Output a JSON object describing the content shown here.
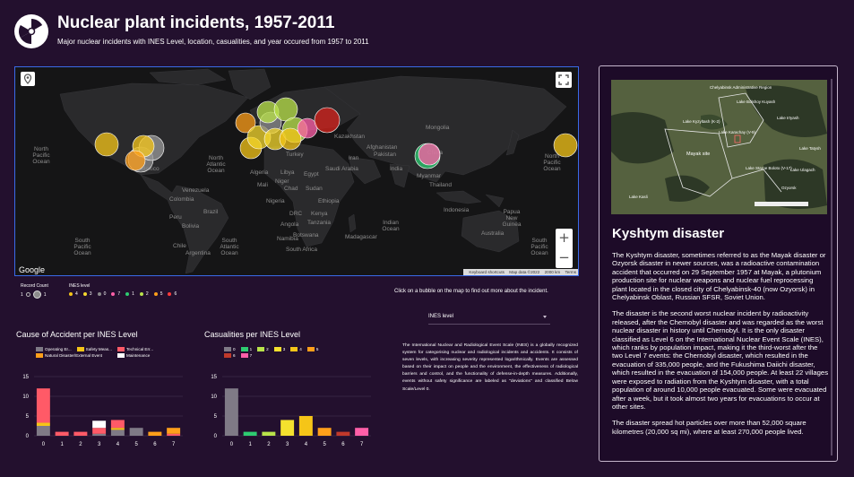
{
  "header": {
    "title": "Nuclear plant incidents, 1957-2011",
    "subtitle": "Major nuclear incidents with INES Level, location, casualities, and year occured from 1957 to 2011"
  },
  "map": {
    "ocean_labels": [
      "North Pacific Ocean",
      "North Atlantic Ocean",
      "South Pacific Ocean",
      "South Atlantic Ocean",
      "Indian Ocean",
      "South Pacific Ocean",
      "North Pacific Ocean",
      "Kazakhstan",
      "Iran",
      "Turkey",
      "Algeria",
      "Libya",
      "Egypt",
      "Chad",
      "Sudan",
      "Nigeria",
      "Ethiopia",
      "Kenya",
      "DRC",
      "Angola",
      "Tanzania",
      "Namibia",
      "Botswana",
      "Madagascar",
      "South Africa",
      "Saudi Arabia",
      "Mongolia",
      "China",
      "India",
      "Myanmar",
      "Thailand",
      "Indonesia",
      "Australia",
      "Mexico",
      "Venezuela",
      "Colombia",
      "Peru",
      "Brazil",
      "Bolivia",
      "Chile",
      "Argentina",
      "Papua New Guinea",
      "Mali",
      "Niger",
      "Pakistan",
      "Afghanistan"
    ],
    "attribution": [
      "Keyboard shortcuts",
      "Map data ©2022",
      "2000 km",
      "Terms"
    ],
    "google": "Google",
    "bubbles": [
      {
        "name": "USA Idaho",
        "level": 4,
        "color": "#f5c518"
      },
      {
        "name": "USA Three Mile Island",
        "level": 5,
        "color": "#ff9f1a"
      },
      {
        "name": "USA West",
        "level": 0,
        "color": "#8c8c8c"
      },
      {
        "name": "UK Windscale",
        "level": 5,
        "color": "#ff9f1a"
      },
      {
        "name": "France",
        "level": 4,
        "color": "#f5c518"
      },
      {
        "name": "Chernobyl",
        "level": 7,
        "color": "#ff4f5a"
      },
      {
        "name": "Kyshtym",
        "level": 6,
        "color": "#c0392b"
      },
      {
        "name": "Japan Fukushima",
        "level": 7,
        "color": "#ff4f5a"
      },
      {
        "name": "Japan Tokaimura",
        "level": 1,
        "color": "#2ecc71"
      }
    ]
  },
  "legend": {
    "size_title": "Record Count",
    "size_values": [
      "1",
      "1"
    ],
    "color_title": "INES level",
    "levels": [
      {
        "label": "4",
        "color": "#f5c518"
      },
      {
        "label": "3",
        "color": "#f5d82e"
      },
      {
        "label": "0",
        "color": "#8c8c8c"
      },
      {
        "label": "7",
        "color": "#ff5fa8"
      },
      {
        "label": "1",
        "color": "#2ecc71"
      },
      {
        "label": "2",
        "color": "#b9e34a"
      },
      {
        "label": "5",
        "color": "#ff9f1a"
      },
      {
        "label": "6",
        "color": "#ff3b3b"
      }
    ]
  },
  "hint": "Click on a bubble on the map to find out more about the incident.",
  "select": {
    "value": "INES level"
  },
  "cause_chart": {
    "title": "Cause of Accident per INES Level",
    "legend": [
      {
        "label": "Operating Er...",
        "color": "#7f7a86"
      },
      {
        "label": "Safety Meas...",
        "color": "#f5c518"
      },
      {
        "label": "Technical Err...",
        "color": "#ff5a67"
      },
      {
        "label": "Natural Disaster/External Event",
        "color": "#ff9f1a"
      },
      {
        "label": "Maintenance",
        "color": "#ffffff"
      }
    ]
  },
  "cas_chart": {
    "title": "Casualities per INES Level",
    "legend": [
      {
        "label": "0",
        "color": "#7f7a86"
      },
      {
        "label": "1",
        "color": "#2ecc71"
      },
      {
        "label": "2",
        "color": "#b9e34a"
      },
      {
        "label": "3",
        "color": "#f5e12e"
      },
      {
        "label": "4",
        "color": "#f5c518"
      },
      {
        "label": "5",
        "color": "#ff9f1a"
      },
      {
        "label": "6",
        "color": "#c0392b"
      },
      {
        "label": "7",
        "color": "#ff5fa8"
      }
    ]
  },
  "chart_data": [
    {
      "type": "bar",
      "title": "Cause of Accident per INES Level",
      "categories": [
        "0",
        "1",
        "2",
        "3",
        "4",
        "5",
        "6",
        "7"
      ],
      "ylim": [
        0,
        15
      ],
      "yticks": [
        "0",
        "5",
        "10",
        "15"
      ],
      "series": [
        {
          "name": "Operating Er...",
          "values": [
            2.5,
            0,
            0,
            0.5,
            1.5,
            2,
            0,
            0
          ]
        },
        {
          "name": "Safety Meas...",
          "values": [
            0.8,
            0,
            0,
            0,
            0.5,
            0,
            0,
            0
          ]
        },
        {
          "name": "Technical Err...",
          "values": [
            8.7,
            1,
            1,
            1.5,
            2,
            0,
            0,
            0.5
          ]
        },
        {
          "name": "Natural Disaster/External Event",
          "values": [
            0,
            0,
            0,
            0,
            0,
            0,
            1,
            1.5
          ]
        },
        {
          "name": "Maintenance",
          "values": [
            0,
            0,
            0,
            1.8,
            0,
            0,
            0,
            0
          ]
        }
      ]
    },
    {
      "type": "bar",
      "title": "Casualities per INES Level",
      "categories": [
        "0",
        "1",
        "2",
        "3",
        "4",
        "5",
        "6",
        "7"
      ],
      "ylim": [
        0,
        15
      ],
      "yticks": [
        "0",
        "5",
        "10",
        "15"
      ],
      "values": [
        12,
        1,
        1,
        4,
        5,
        2,
        1,
        2
      ]
    }
  ],
  "ines_description": "The International Nuclear and Radiological Event Scale (INES) is a globally recognized system for categorising nuclear and radiological incidents and accidents. It consists of seven levels, with increasing severity represented logarithmically. Events are assessed based on their impact on people and the environment, the effectiveness of radiological barriers and control, and the functionality of defense-in-depth measures. Additionally, events without safety significance are labeled as \"deviations\" and classified Below Scale/Level 0.",
  "panel": {
    "title": "Kyshtym disaster",
    "paragraphs": [
      "The Kyshtym disaster, sometimes referred to as the Mayak disaster or Ozyorsk disaster in newer sources, was a radioactive contamination accident that occurred on 29 September 1957 at Mayak, a plutonium production site for nuclear weapons and nuclear fuel reprocessing plant located in the closed city of Chelyabinsk-40 (now Ozyorsk) in Chelyabinsk Oblast, Russian SFSR, Soviet Union.",
      "The disaster is the second worst nuclear incident by radioactivity released, after the Chernobyl disaster and was regarded as the worst nuclear disaster in history until Chernobyl. It is the only disaster classified as Level 6 on the International Nuclear Event Scale (INES), which ranks by population impact, making it the third-worst after the two Level 7 events: the Chernobyl disaster, which resulted in the evacuation of 335,000 people, and the Fukushima Daiichi disaster, which resulted in the evacuation of 154,000 people. At least 22 villages were exposed to radiation from the Kyshtym disaster, with a total population of around 10,000 people evacuated. Some were evacuated after a week, but it took almost two years for evacuations to occur at other sites.",
      "The disaster spread hot particles over more than 52,000 square kilometres (20,000 sq mi), where at least 270,000 people lived."
    ],
    "photo_labels": [
      "Chelyabinsk Administrative Region",
      "Lake Kyzyltash (K-2)",
      "Mayak site",
      "Lake Karachay (V-9)",
      "Lake Tatysh",
      "Lake Irtyash",
      "Ozyorsk",
      "Lake Ulagach",
      "Lake Kasli",
      "Lake Staroe Boloto (V-17)",
      "Lake Bolshoy Kuyash"
    ]
  }
}
